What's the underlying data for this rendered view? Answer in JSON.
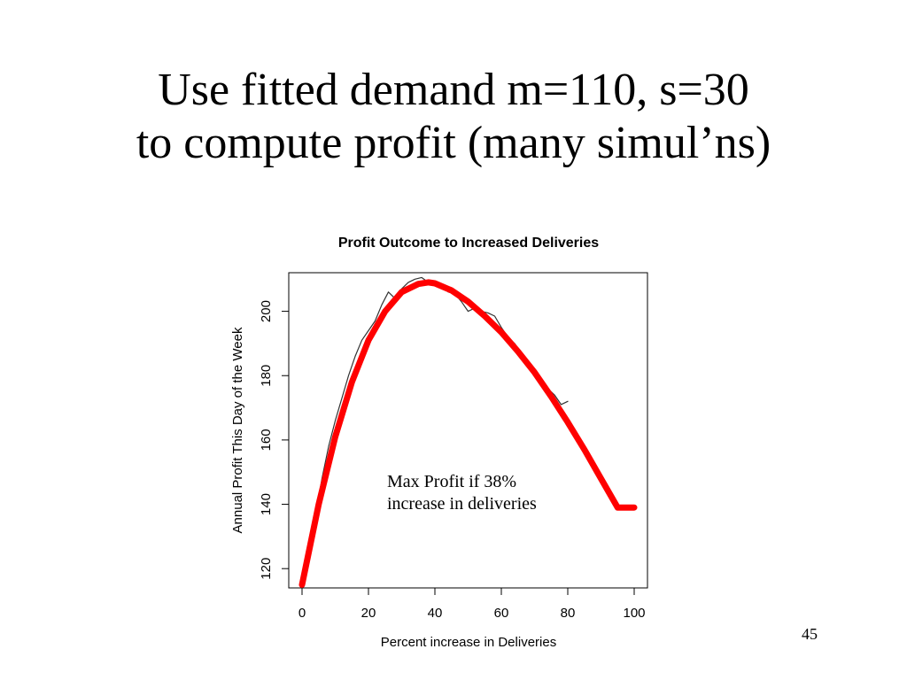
{
  "slide": {
    "title_line1": "Use fitted demand m=110, s=30",
    "title_line2": "to compute profit (many simul’ns)",
    "annotation_line1": "Max Profit if 38%",
    "annotation_line2": "increase in deliveries",
    "page_number": "45"
  },
  "chart_data": {
    "type": "line",
    "title": "Profit Outcome to Increased Deliveries",
    "xlabel": "Percent increase in Deliveries",
    "ylabel": "Annual Profit This Day of the Week",
    "xlim": [
      -4,
      104
    ],
    "ylim": [
      114,
      212
    ],
    "xticks": [
      0,
      20,
      40,
      60,
      80,
      100
    ],
    "yticks": [
      120,
      140,
      160,
      180,
      200
    ],
    "grid": false,
    "colors": {
      "simulated": "#333333",
      "fitted": "#ff0000"
    },
    "series": [
      {
        "x": [
          0,
          2,
          4,
          6,
          8,
          10,
          12,
          14,
          16,
          18,
          20,
          22,
          24,
          26,
          28,
          30,
          32,
          34,
          36,
          38,
          40,
          42,
          44,
          46,
          48,
          50,
          52,
          54,
          56,
          58,
          60,
          62,
          64,
          66,
          68,
          70,
          72,
          74,
          76,
          78,
          80
        ],
        "y": [
          116,
          124,
          136,
          148,
          158,
          166,
          173,
          180,
          186,
          191,
          194,
          197,
          202,
          206,
          204,
          207,
          209,
          210,
          210.5,
          209,
          209,
          208.5,
          206,
          205.5,
          203,
          200,
          201,
          200,
          199.5,
          198.5,
          195,
          192,
          190,
          187,
          184,
          182,
          177,
          176,
          174,
          171,
          172
        ]
      },
      {
        "x": [
          0,
          5,
          10,
          15,
          20,
          25,
          30,
          35,
          38,
          40,
          45,
          50,
          55,
          60,
          65,
          70,
          75,
          80,
          85,
          90,
          95,
          100
        ],
        "y": [
          115,
          140,
          161,
          178,
          191,
          200,
          206,
          208.5,
          209,
          208.7,
          206.5,
          203,
          198.5,
          193.5,
          187.5,
          181,
          173.5,
          165.5,
          157,
          148,
          139,
          139
        ]
      }
    ]
  }
}
